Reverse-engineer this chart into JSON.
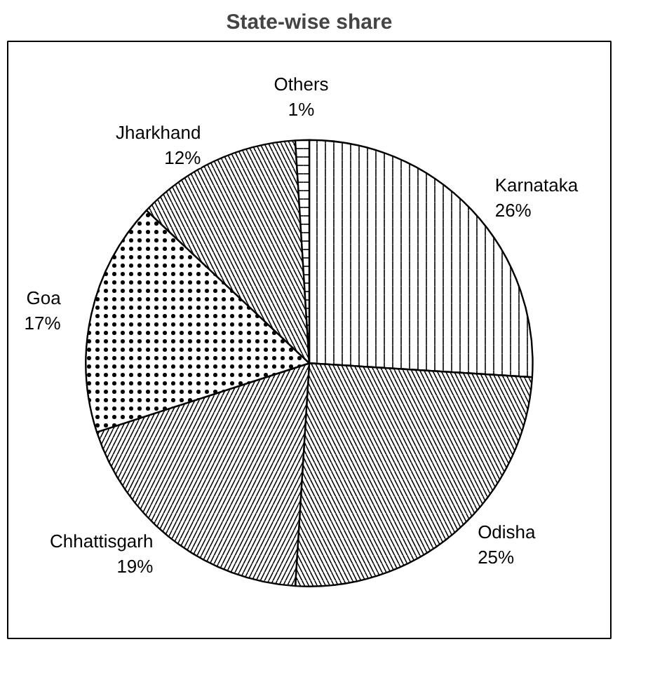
{
  "chart_data": {
    "type": "pie",
    "title": "State-wise share",
    "categories": [
      "Karnataka",
      "Odisha",
      "Chhattisgarh",
      "Goa",
      "Jharkhand",
      "Others"
    ],
    "values": [
      26,
      25,
      19,
      17,
      12,
      1
    ],
    "colors": [
      "#ffffff",
      "#ffffff",
      "#ffffff",
      "#ffffff",
      "#ffffff",
      "#ffffff"
    ],
    "value_labels": [
      "26%",
      "25%",
      "19%",
      "17%",
      "12%",
      "1%"
    ]
  }
}
